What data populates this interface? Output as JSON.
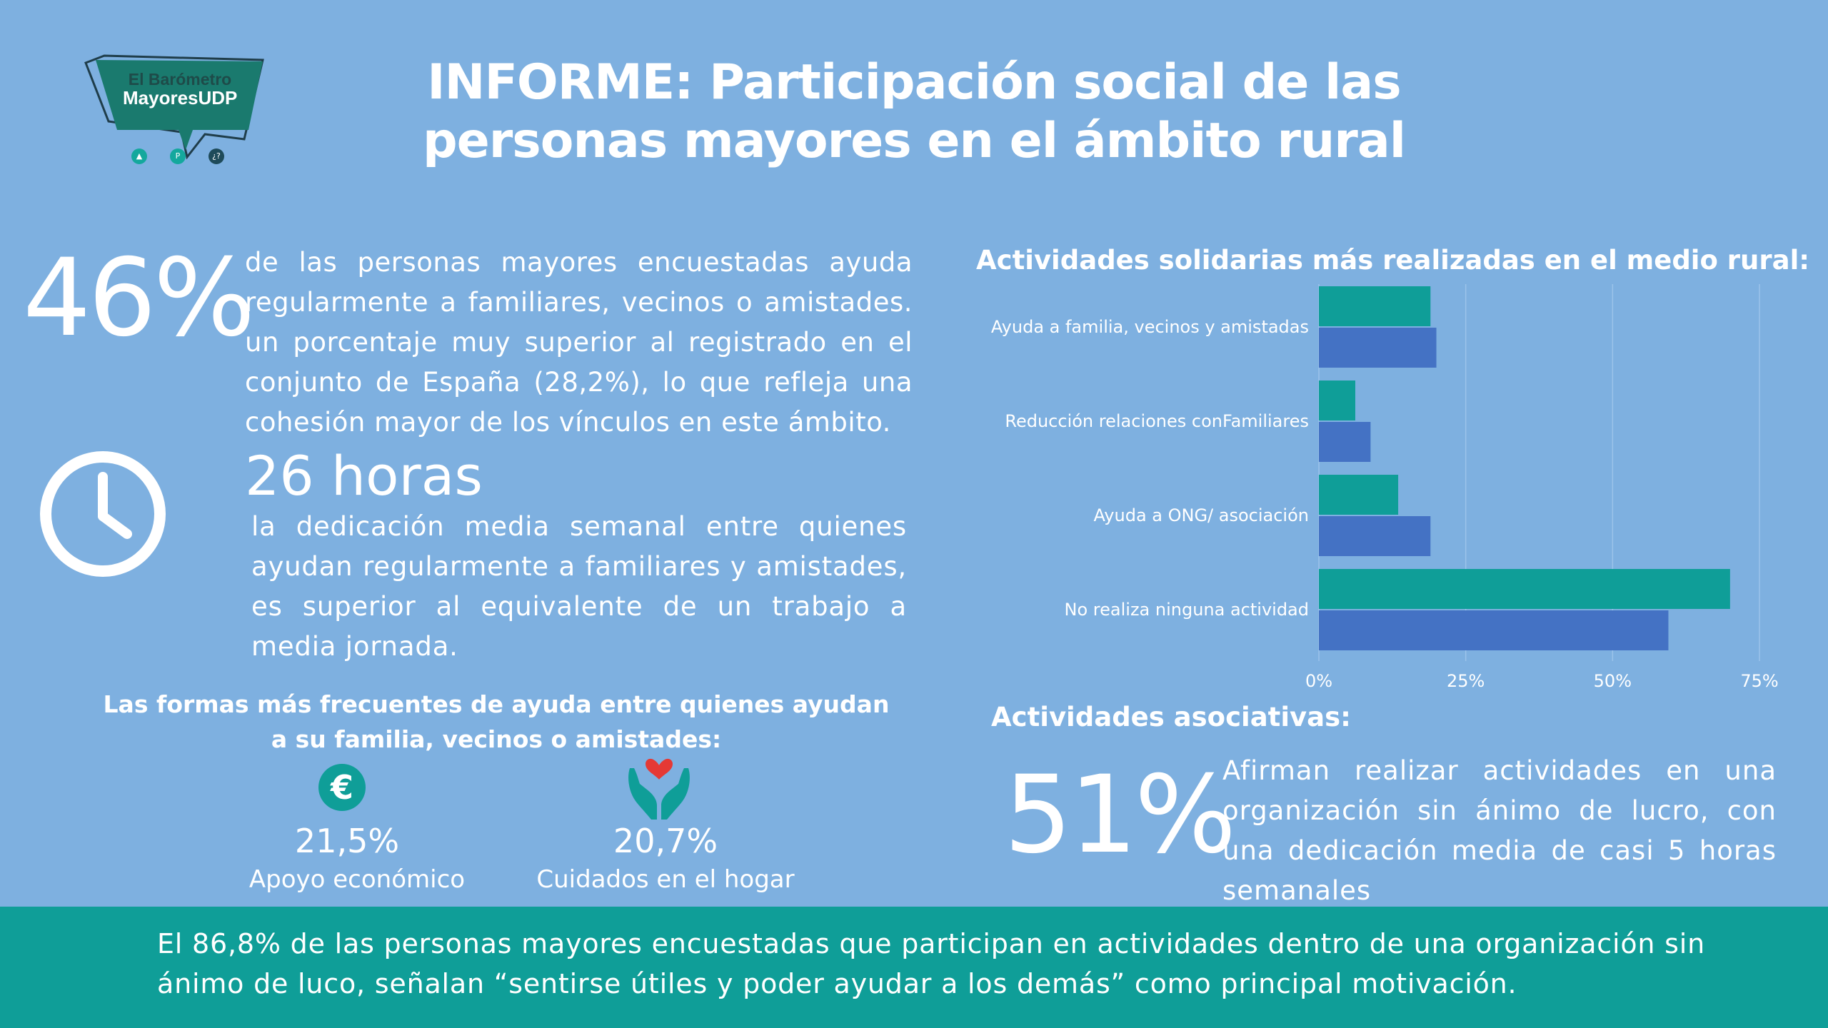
{
  "logo": {
    "line1": "El Barómetro",
    "line2": "MayoresUDP",
    "dots": [
      "▲",
      "P",
      "¿?"
    ]
  },
  "title": {
    "line1": "INFORME: Participación social de las",
    "line2": "personas mayores en el ámbito rural"
  },
  "stat_46": {
    "value": "46%",
    "text": "de las personas mayores encuestadas ayuda regularmente a familiares, vecinos o amistades. un porcentaje muy superior al registrado en el conjunto de España (28,2%), lo que refleja una cohesión mayor de los vínculos en este ámbito."
  },
  "hours": {
    "icon": "clock-icon",
    "value": "26 horas",
    "text": "la dedicación media semanal entre quienes ayudan regularmente a familiares y amistades, es superior al equivalente de un trabajo a media jornada."
  },
  "help_forms": {
    "heading": "Las formas más frecuentes de ayuda entre quienes ayudan a su familia, vecinos o amistades:",
    "items": [
      {
        "icon": "euro-icon",
        "symbol": "€",
        "value": "21,5%",
        "label": "Apoyo económico"
      },
      {
        "icon": "caring-hands-icon",
        "value": "20,7%",
        "label": "Cuidados en el hogar"
      }
    ]
  },
  "chart_title": "Actividades solidarias más realizadas en el medio rural:",
  "chart_data": {
    "type": "bar",
    "orientation": "horizontal",
    "title": "Actividades solidarias más realizadas en el medio rural:",
    "categories": [
      "Ayuda a familia, vecinos y amistadas",
      "Reducción relaciones conFamiliares",
      "Ayuda a ONG/ asociación",
      "No realiza ninguna actividad"
    ],
    "series": [
      {
        "color": "#0f9e98",
        "values": [
          19,
          6.2,
          13.5,
          70
        ]
      },
      {
        "color": "#4472c4",
        "values": [
          20,
          8.8,
          19,
          59.5
        ]
      }
    ],
    "xlim": [
      0,
      75
    ],
    "ticks": [
      "0%",
      "25%",
      "50%",
      "75%"
    ],
    "tick_values": [
      0,
      25,
      50,
      75
    ],
    "grid": true,
    "legend": "none"
  },
  "assoc": {
    "title": "Actividades asociativas:",
    "value": "51%",
    "text": "Afirman realizar actividades en una organización sin ánimo de lucro, con una dedicación media de casi 5 horas semanales"
  },
  "footer": {
    "text": "El 86,8% de las personas mayores encuestadas que participan en actividades dentro de una organización sin ánimo de luco, señalan “sentirse útiles y poder ayudar a los demás” como principal motivación."
  },
  "colors": {
    "background": "#7eb0e0",
    "teal": "#0f9e98",
    "blue": "#4472c4",
    "logo_dark": "#1e6e6a"
  }
}
